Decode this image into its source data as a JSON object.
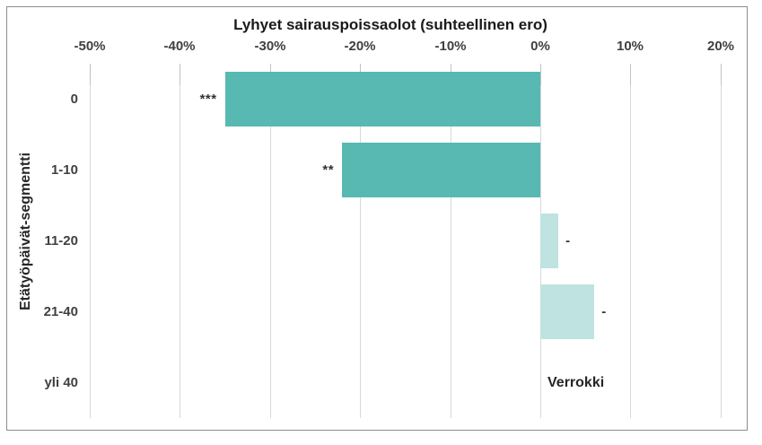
{
  "chart": {
    "background": "#FFFFFF",
    "border_color": "#8E8E8E"
  },
  "chart_data": {
    "type": "bar",
    "orientation": "horizontal",
    "title": "Lyhyet sairauspoissaolot (suhteellinen ero)",
    "xlabel": "",
    "ylabel": "Etätyöpäivät-segmentti",
    "categories": [
      "0",
      "1-10",
      "11-20",
      "21-40",
      "yli 40"
    ],
    "values": [
      -35,
      -22,
      2,
      6,
      null
    ],
    "unit": "%",
    "annotations": [
      "***",
      "**",
      "-",
      "-",
      "Verrokki"
    ],
    "xlim": [
      -50,
      20
    ],
    "x_tick_values": [
      -50,
      -40,
      -30,
      -20,
      -10,
      0,
      10,
      20
    ],
    "x_tick_labels": [
      "-50%",
      "-40%",
      "-30%",
      "-20%",
      "-10%",
      "0%",
      "10%",
      "20%"
    ],
    "grid": true,
    "legend": "none",
    "bar_colors": [
      "#57B9B2",
      "#57B9B2",
      "#BEE3E1",
      "#BEE3E1",
      null
    ],
    "colors": {
      "bar_strong": "#57B9B2",
      "bar_light": "#BEE3E1",
      "gridline": "#D8D8D8",
      "tick": "#C2C2C2",
      "axis_text": "#404040",
      "title_text": "#1A1A1A"
    }
  }
}
